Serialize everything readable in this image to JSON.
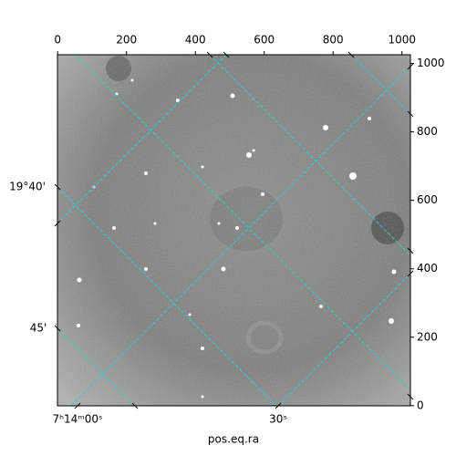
{
  "chart_data": {
    "type": "image",
    "xlabel": "pos.eq.ra",
    "xlim": [
      -0.5,
      1024.5
    ],
    "xticks": [
      0,
      200,
      400,
      600,
      800,
      1000
    ],
    "ylim": [
      -0.5,
      1025.5
    ],
    "yticks": [
      0,
      200,
      400,
      600,
      800,
      1000
    ],
    "dec_ticks": [
      "19°40'",
      "45'"
    ],
    "ra_ticks": [
      "7ʰ14ᵐ00ˢ",
      "30ˢ"
    ]
  }
}
